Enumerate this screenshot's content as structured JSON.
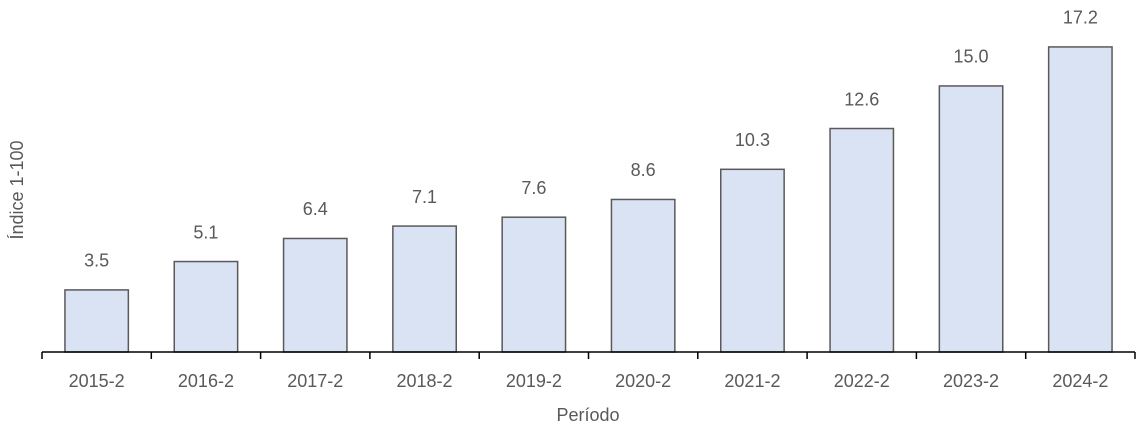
{
  "chart_data": {
    "type": "bar",
    "x_label": "Período",
    "y_label": "Índice 1-100",
    "categories": [
      "2015-2",
      "2016-2",
      "2017-2",
      "2018-2",
      "2019-2",
      "2020-2",
      "2021-2",
      "2022-2",
      "2023-2",
      "2024-2"
    ],
    "values": [
      3.5,
      5.1,
      6.4,
      7.1,
      7.6,
      8.6,
      10.3,
      12.6,
      15.0,
      17.2
    ],
    "value_labels": [
      "3.5",
      "5.1",
      "6.4",
      "7.1",
      "7.6",
      "8.6",
      "10.3",
      "12.6",
      "15.0",
      "17.2"
    ],
    "color": "#dae3f3",
    "edge_color": "#595959",
    "ylim": [
      0,
      19
    ]
  }
}
